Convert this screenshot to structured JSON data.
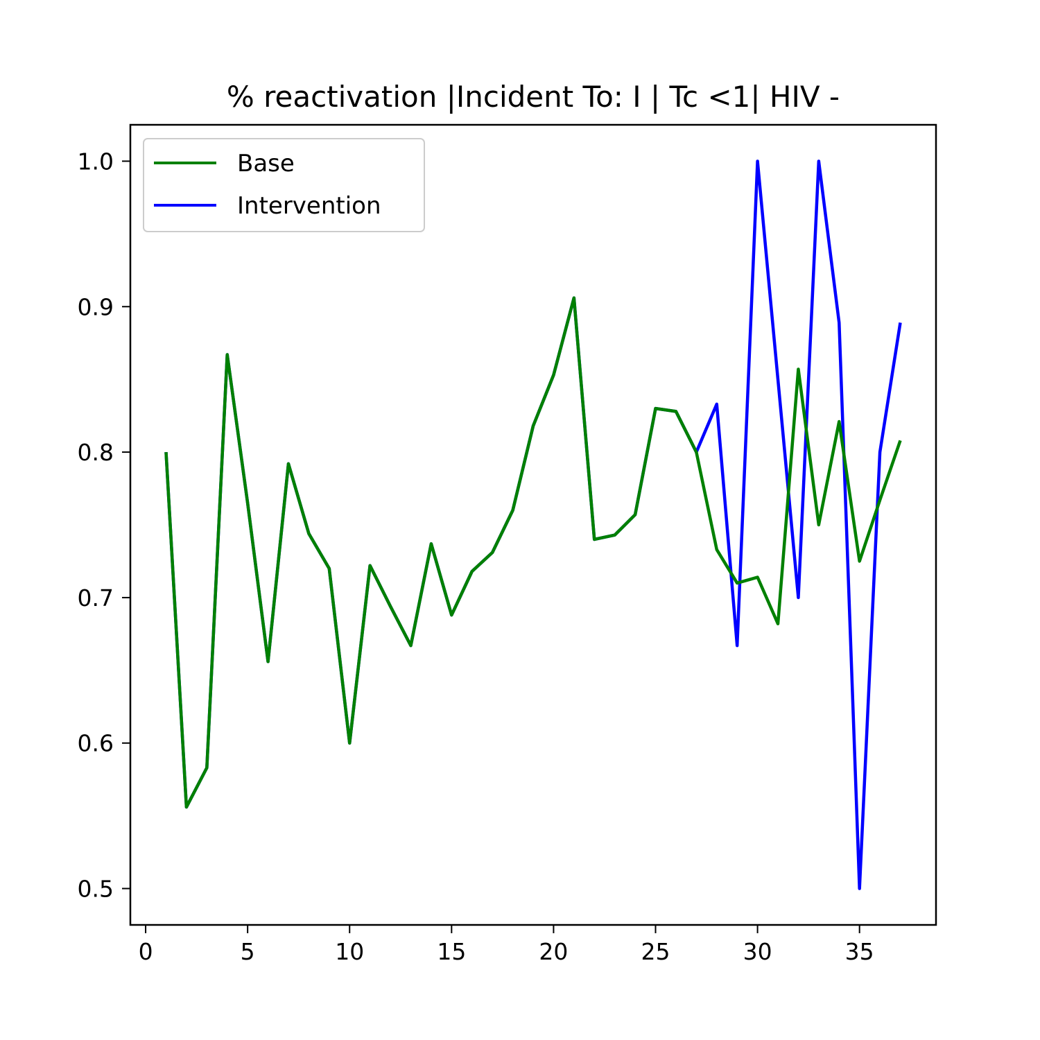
{
  "chart_data": {
    "type": "line",
    "title": "% reactivation |Incident To: I | Tc <1| HIV -",
    "xlabel": "",
    "ylabel": "",
    "xlim": [
      -0.75,
      38.75
    ],
    "ylim": [
      0.475,
      1.025
    ],
    "xticks": [
      0,
      5,
      10,
      15,
      20,
      25,
      30,
      35
    ],
    "yticks": [
      0.5,
      0.6,
      0.7,
      0.8,
      0.9,
      1.0
    ],
    "xtick_labels": [
      "0",
      "5",
      "10",
      "15",
      "20",
      "25",
      "30",
      "35"
    ],
    "ytick_labels": [
      "0.5",
      "0.6",
      "0.7",
      "0.8",
      "0.9",
      "1.0"
    ],
    "grid": false,
    "legend_position": "top-left",
    "x": [
      1,
      2,
      3,
      4,
      5,
      6,
      7,
      8,
      9,
      10,
      11,
      12,
      13,
      14,
      15,
      16,
      17,
      18,
      19,
      20,
      21,
      22,
      23,
      24,
      25,
      26,
      27,
      28,
      29,
      30,
      31,
      32,
      33,
      34,
      35,
      36,
      37
    ],
    "series": [
      {
        "name": "Intervention",
        "color": "#0000ff",
        "values": [
          0.8,
          0.556,
          0.583,
          0.867,
          0.765,
          0.656,
          0.792,
          0.744,
          0.72,
          0.6,
          0.722,
          0.694,
          0.667,
          0.737,
          0.688,
          0.718,
          0.731,
          0.76,
          0.818,
          0.853,
          0.906,
          0.74,
          0.743,
          0.757,
          0.83,
          0.828,
          0.8,
          0.833,
          0.667,
          1.0,
          0.85,
          0.7,
          1.0,
          0.889,
          0.5,
          0.8,
          0.889
        ]
      },
      {
        "name": "Base",
        "color": "#008000",
        "values": [
          0.8,
          0.556,
          0.583,
          0.867,
          0.765,
          0.656,
          0.792,
          0.744,
          0.72,
          0.6,
          0.722,
          0.694,
          0.667,
          0.737,
          0.688,
          0.718,
          0.731,
          0.76,
          0.818,
          0.853,
          0.906,
          0.74,
          0.743,
          0.757,
          0.83,
          0.828,
          0.8,
          0.733,
          0.71,
          0.714,
          0.682,
          0.857,
          0.75,
          0.821,
          0.725,
          0.767,
          0.808
        ]
      }
    ],
    "legend_order": [
      "Base",
      "Intervention"
    ]
  }
}
